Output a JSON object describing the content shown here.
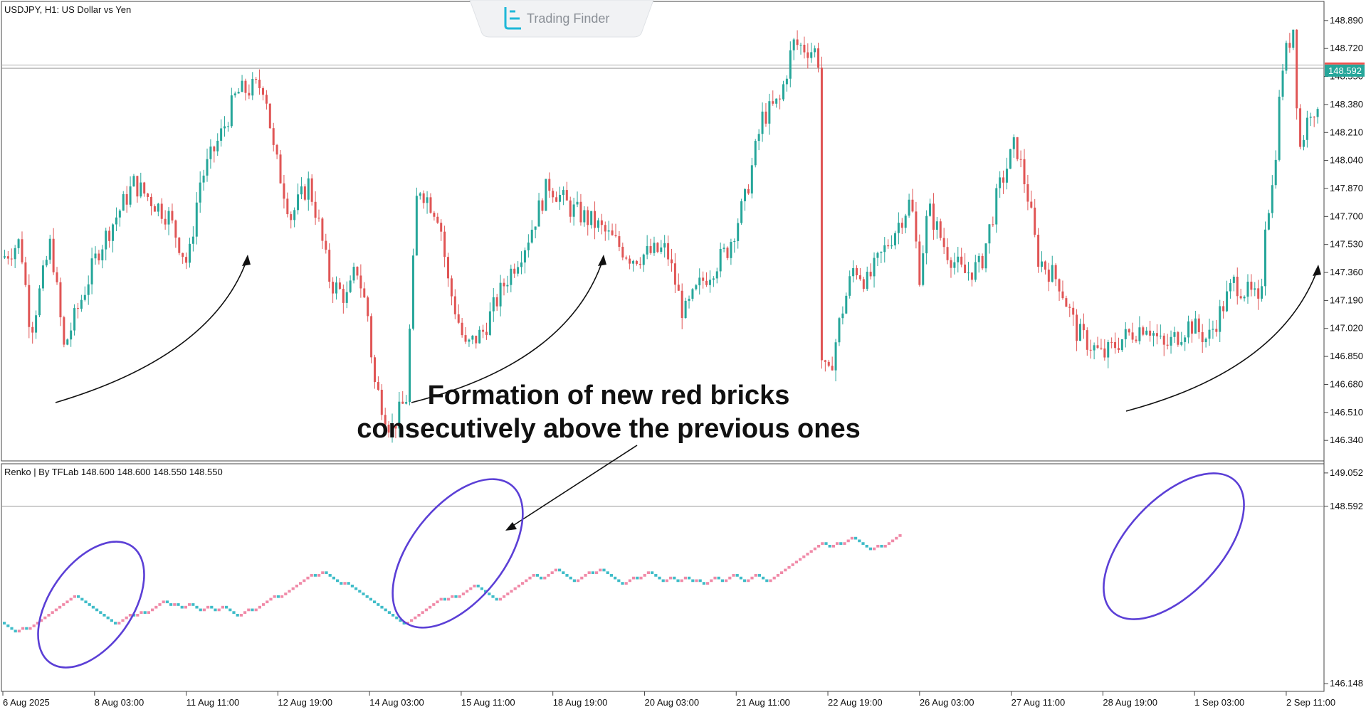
{
  "brand": {
    "name": "Trading Finder"
  },
  "colors": {
    "bull": "#26a69a",
    "bear": "#e05555",
    "renko_up": "#f08aa8",
    "renko_down": "#3fbcc8",
    "ellipse": "#5b3fd6",
    "price_tag": "#26a69a",
    "price_tag_alt": "#ef5350"
  },
  "chart_data": [
    {
      "type": "candlestick",
      "title": "USDJPY, H1:  US Dollar vs Yen",
      "yticks": [
        "148.890",
        "148.720",
        "148.550",
        "148.380",
        "148.210",
        "148.040",
        "147.870",
        "147.700",
        "147.530",
        "147.360",
        "147.190",
        "147.020",
        "146.850",
        "146.680",
        "146.510",
        "146.340"
      ],
      "ylim": [
        146.25,
        148.98
      ],
      "current_price": "148.592",
      "horizontal_levels": [
        148.62,
        148.6
      ],
      "path": [
        [
          0,
          147.45
        ],
        [
          20,
          147.55
        ],
        [
          32,
          147.0
        ],
        [
          55,
          147.55
        ],
        [
          70,
          146.9
        ],
        [
          110,
          147.5
        ],
        [
          150,
          147.9
        ],
        [
          190,
          147.7
        ],
        [
          212,
          147.4
        ],
        [
          225,
          147.9
        ],
        [
          250,
          148.2
        ],
        [
          268,
          148.45
        ],
        [
          300,
          148.5
        ],
        [
          310,
          148.1
        ],
        [
          330,
          147.7
        ],
        [
          350,
          147.9
        ],
        [
          360,
          147.7
        ],
        [
          375,
          147.3
        ],
        [
          395,
          147.2
        ],
        [
          405,
          147.4
        ],
        [
          418,
          147.1
        ],
        [
          425,
          146.7
        ],
        [
          445,
          146.4
        ],
        [
          462,
          146.6
        ],
        [
          475,
          147.9
        ],
        [
          500,
          147.7
        ],
        [
          510,
          147.3
        ],
        [
          530,
          146.9
        ],
        [
          550,
          147.0
        ],
        [
          575,
          147.3
        ],
        [
          600,
          147.55
        ],
        [
          625,
          147.9
        ],
        [
          650,
          147.75
        ],
        [
          680,
          147.65
        ],
        [
          700,
          147.55
        ],
        [
          720,
          147.45
        ],
        [
          760,
          147.5
        ],
        [
          780,
          147.1
        ],
        [
          800,
          147.3
        ],
        [
          830,
          147.5
        ],
        [
          850,
          147.8
        ],
        [
          870,
          148.3
        ],
        [
          890,
          148.4
        ],
        [
          905,
          148.75
        ],
        [
          932,
          148.7
        ],
        [
          936,
          148.6
        ],
        [
          937,
          146.85
        ],
        [
          945,
          146.7
        ],
        [
          960,
          147.1
        ],
        [
          975,
          147.4
        ],
        [
          990,
          147.3
        ],
        [
          1010,
          147.5
        ],
        [
          1040,
          147.8
        ],
        [
          1050,
          147.35
        ],
        [
          1060,
          147.75
        ],
        [
          1080,
          147.5
        ],
        [
          1100,
          147.35
        ],
        [
          1120,
          147.4
        ],
        [
          1140,
          147.85
        ],
        [
          1160,
          148.15
        ],
        [
          1175,
          147.8
        ],
        [
          1185,
          147.45
        ],
        [
          1210,
          147.3
        ],
        [
          1230,
          147.0
        ],
        [
          1260,
          146.85
        ],
        [
          1280,
          146.95
        ],
        [
          1310,
          147.05
        ],
        [
          1330,
          146.9
        ],
        [
          1360,
          147.05
        ],
        [
          1380,
          146.95
        ],
        [
          1410,
          147.3
        ],
        [
          1435,
          147.2
        ],
        [
          1440,
          147.1
        ],
        [
          1445,
          147.65
        ],
        [
          1455,
          147.9
        ],
        [
          1465,
          148.6
        ],
        [
          1478,
          148.85
        ],
        [
          1485,
          148.1
        ],
        [
          1500,
          148.4
        ],
        [
          1508,
          148.25
        ]
      ],
      "x_tick_positions": [
        0,
        105,
        210,
        315,
        420,
        525,
        630,
        735,
        840,
        945,
        1050,
        1155,
        1260,
        1365,
        1470
      ],
      "xticks": [
        "6 Aug 2025",
        "8 Aug 03:00",
        "11 Aug 11:00",
        "12 Aug 19:00",
        "14 Aug 03:00",
        "15 Aug 11:00",
        "18 Aug 19:00",
        "20 Aug 03:00",
        "21 Aug 11:00",
        "22 Aug 19:00",
        "26 Aug 03:00",
        "27 Aug 11:00",
        "28 Aug 19:00",
        "1 Sep 03:00",
        "2 Sep 11:00"
      ]
    },
    {
      "type": "renko",
      "title": "Renko | By TFLab 148.600 148.600 148.550 148.550",
      "yticks": [
        "149.052",
        "148.592",
        "146.148"
      ],
      "ylim": [
        146.1,
        149.1
      ],
      "current_price": "148.592",
      "segments": [
        [
          1,
          0,
          6,
          -1
        ],
        [
          7,
          2,
          7,
          1
        ],
        [
          9,
          5,
          2,
          -1
        ],
        [
          11,
          1,
          4,
          1
        ],
        [
          10,
          -2,
          4,
          -1
        ],
        [
          4,
          3,
          5,
          1
        ],
        [
          6,
          -4,
          6,
          -1
        ],
        [
          3,
          7,
          5,
          1
        ],
        [
          7,
          -2,
          4,
          -1
        ],
        [
          1,
          2,
          3,
          1
        ],
        [
          5,
          4,
          6,
          -1
        ],
        [
          6,
          -2,
          2,
          1
        ],
        [
          5,
          -3,
          3,
          -1
        ],
        [
          8,
          3,
          10,
          1
        ],
        [
          12,
          -1,
          7,
          -1
        ],
        [
          4,
          4,
          2,
          1
        ],
        [
          2,
          -4,
          3,
          -1
        ]
      ],
      "runs": [
        [
          -1,
          4
        ],
        [
          1,
          2
        ],
        [
          -1,
          1
        ],
        [
          1,
          13
        ],
        [
          -1,
          11
        ],
        [
          1,
          4
        ],
        [
          -1,
          1
        ],
        [
          1,
          2
        ],
        [
          -1,
          1
        ],
        [
          1,
          5
        ],
        [
          -1,
          2
        ],
        [
          1,
          1
        ],
        [
          -1,
          2
        ],
        [
          1,
          2
        ],
        [
          -1,
          3
        ],
        [
          1,
          2
        ],
        [
          -1,
          2
        ],
        [
          1,
          2
        ],
        [
          -1,
          4
        ],
        [
          1,
          3
        ],
        [
          -1,
          1
        ],
        [
          1,
          6
        ],
        [
          -1,
          1
        ],
        [
          1,
          9
        ],
        [
          -1,
          1
        ],
        [
          1,
          2
        ],
        [
          -1,
          5
        ],
        [
          1,
          1
        ],
        [
          -1,
          16
        ],
        [
          1,
          10
        ],
        [
          -1,
          1
        ],
        [
          1,
          2
        ],
        [
          -1,
          1
        ],
        [
          1,
          5
        ],
        [
          -1,
          6
        ],
        [
          1,
          10
        ],
        [
          -1,
          2
        ],
        [
          1,
          4
        ],
        [
          -1,
          5
        ],
        [
          1,
          4
        ],
        [
          -1,
          1
        ],
        [
          1,
          2
        ],
        [
          -1,
          6
        ],
        [
          1,
          3
        ],
        [
          -1,
          1
        ],
        [
          1,
          3
        ],
        [
          -1,
          4
        ],
        [
          1,
          2
        ],
        [
          -1,
          2
        ],
        [
          1,
          2
        ],
        [
          -1,
          2
        ],
        [
          1,
          1
        ],
        [
          -1,
          2
        ],
        [
          1,
          3
        ],
        [
          -1,
          2
        ],
        [
          1,
          3
        ],
        [
          -1,
          3
        ],
        [
          1,
          3
        ],
        [
          -1,
          3
        ],
        [
          1,
          15
        ],
        [
          -1,
          2
        ],
        [
          1,
          2
        ],
        [
          -1,
          1
        ],
        [
          1,
          3
        ],
        [
          -1,
          5
        ],
        [
          1,
          2
        ],
        [
          -1,
          1
        ],
        [
          1,
          5
        ]
      ]
    }
  ],
  "annotation": {
    "line1": "Formation of new red bricks",
    "line2": "consecutively above the previous ones"
  }
}
